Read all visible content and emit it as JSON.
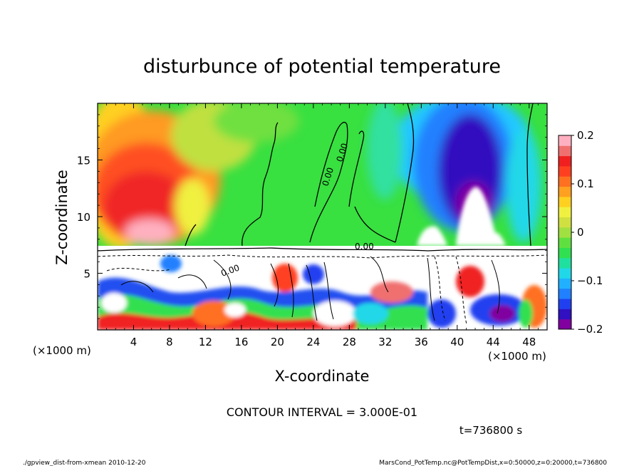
{
  "chart_data": {
    "type": "heatmap",
    "title": "disturbunce of potential temperature",
    "xlabel": "X-coordinate",
    "ylabel": "Z-coordinate",
    "x_unit_left": "(×1000 m)",
    "x_unit_right": "(×1000 m)",
    "x_ticks": [
      4,
      8,
      12,
      16,
      20,
      24,
      28,
      32,
      36,
      40,
      44,
      48
    ],
    "y_ticks": [
      5,
      10,
      15
    ],
    "xlim": [
      0,
      50
    ],
    "ylim": [
      0,
      20
    ],
    "colorbar": {
      "ticks": [
        "0.2",
        "0.1",
        "0",
        "−0.1",
        "−0.2"
      ],
      "tick_values": [
        0.2,
        0.1,
        0,
        -0.1,
        -0.2
      ],
      "range": [
        -0.2,
        0.2
      ],
      "colors": [
        "#8000a0",
        "#3010c0",
        "#2040f0",
        "#2080ff",
        "#20b0ff",
        "#20d8e8",
        "#20e0a0",
        "#30e050",
        "#60e040",
        "#a0e040",
        "#d0e040",
        "#f0f040",
        "#ffd020",
        "#ffa020",
        "#ff7020",
        "#ff4020",
        "#f02020",
        "#f07070",
        "#ffb0c0"
      ]
    },
    "contour_labels": [
      "0.00",
      "0.00",
      "0.00",
      "0.00"
    ],
    "contour_interval": "CONTOUR INTERVAL = 3.000E-01",
    "time_label": "t=736800 s"
  },
  "footer": {
    "left": "./gpview_dist-from-xmean 2010-12-20",
    "right": "MarsCond_PotTemp.nc@PotTempDist,x=0:50000,z=0:20000,t=736800"
  }
}
